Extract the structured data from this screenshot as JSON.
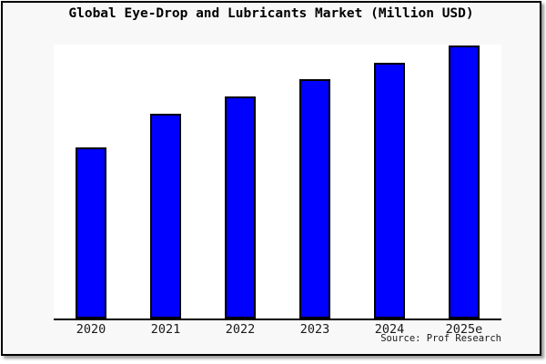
{
  "chart_data": {
    "type": "bar",
    "title": "Global Eye-Drop and Lubricants Market (Million USD)",
    "categories": [
      "2020",
      "2021",
      "2022",
      "2023",
      "2024",
      "2025e"
    ],
    "values": [
      62.5,
      74.7,
      81.1,
      87.4,
      93.3,
      99.7
    ],
    "values_unit": "relative bar height, percent of plot height (y-axis has no tick labels)",
    "xlabel": "",
    "ylabel": "",
    "ylim": [
      0,
      100
    ],
    "grid": false,
    "legend": "none",
    "y_axis_ticks": "none",
    "source": "Source: Prof Research",
    "colors": {
      "bar_fill": "#0000ff",
      "bar_border": "#000000",
      "plot_background": "#ffffff",
      "canvas_background": "#f8f8f8",
      "frame_border": "#000000",
      "text": "#000000"
    }
  }
}
